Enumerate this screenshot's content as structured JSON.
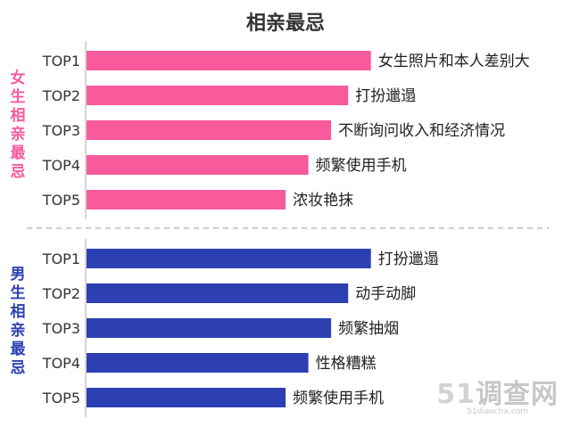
{
  "title": "相亲最忌",
  "colors": {
    "female": "#f85a9c",
    "male": "#2d40b3",
    "axis": "#c8c8c8",
    "divider": "#bbbbbb"
  },
  "watermark": {
    "number": "51",
    "text": "调查网",
    "url": "51diaocha.com"
  },
  "chart_data": [
    {
      "type": "bar",
      "orientation": "horizontal",
      "group_label": "女生相亲最忌",
      "categories": [
        "TOP1",
        "TOP2",
        "TOP3",
        "TOP4",
        "TOP5"
      ],
      "bar_labels": [
        "女生照片和本人差别大",
        "打扮邋遢",
        "不断询问收入和经济情况",
        "频繁使用手机",
        "浓妆艳抹"
      ],
      "values": [
        5,
        4.6,
        4.3,
        3.9,
        3.5
      ],
      "xlim": [
        0,
        5.6
      ]
    },
    {
      "type": "bar",
      "orientation": "horizontal",
      "group_label": "男生相亲最忌",
      "categories": [
        "TOP1",
        "TOP2",
        "TOP3",
        "TOP4",
        "TOP5"
      ],
      "bar_labels": [
        "打扮邋遢",
        "动手动脚",
        "频繁抽烟",
        "性格糟糕",
        "频繁使用手机"
      ],
      "values": [
        5,
        4.6,
        4.3,
        3.9,
        3.5
      ],
      "xlim": [
        0,
        5.6
      ]
    }
  ]
}
